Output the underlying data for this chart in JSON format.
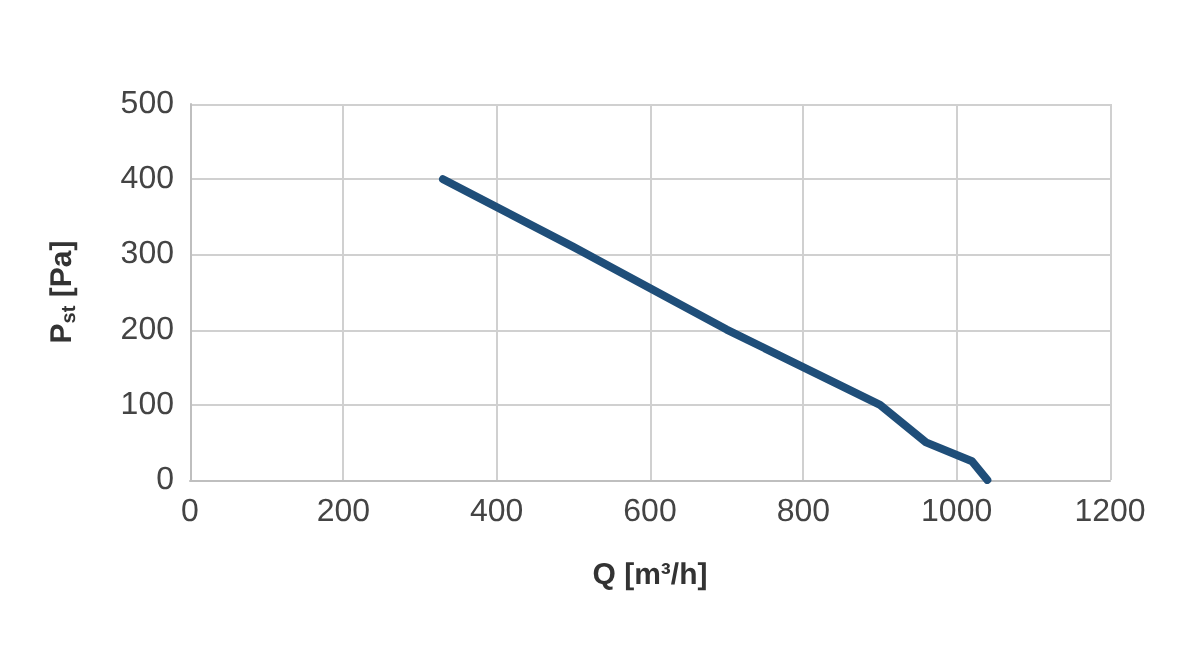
{
  "chart_data": {
    "type": "line",
    "xlabel": "Q [m³/h]",
    "ylabel": "P$_{st}$ [Pa]",
    "x": [
      330,
      500,
      700,
      900,
      960,
      1020,
      1040
    ],
    "series": [
      {
        "color": "#1f4e79",
        "values": [
          400,
          310,
          200,
          100,
          50,
          25,
          0
        ]
      }
    ],
    "xlim": [
      0,
      1200
    ],
    "xticks": [
      0,
      200,
      400,
      600,
      800,
      1000,
      1200
    ],
    "ylim": [
      0,
      500
    ],
    "yticks": [
      0,
      100,
      200,
      300,
      400,
      500
    ],
    "grid": true,
    "marker": "none",
    "line_style": "solid"
  }
}
